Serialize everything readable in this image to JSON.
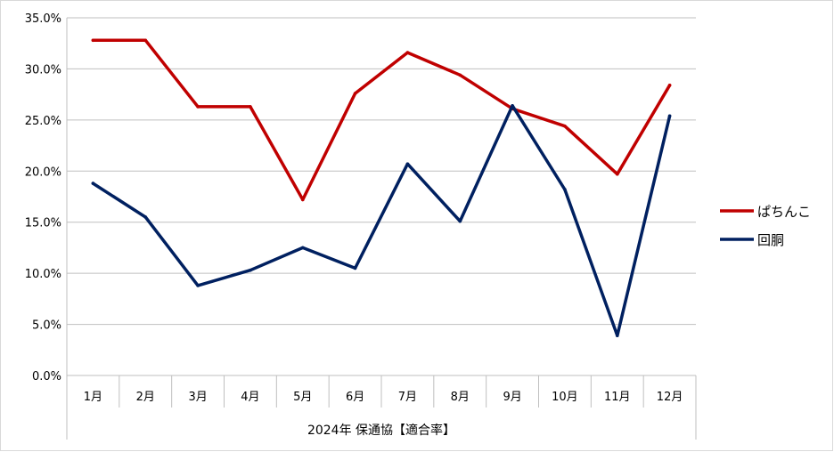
{
  "chart_data": {
    "type": "line",
    "categories": [
      "1月",
      "2月",
      "3月",
      "4月",
      "5月",
      "6月",
      "7月",
      "8月",
      "9月",
      "10月",
      "11月",
      "12月"
    ],
    "series": [
      {
        "name": "ぱちんこ",
        "color": "#c00000",
        "values": [
          32.8,
          32.8,
          26.3,
          26.3,
          17.2,
          27.6,
          31.6,
          29.4,
          26.1,
          24.4,
          19.7,
          28.4
        ]
      },
      {
        "name": "回胴",
        "color": "#002060",
        "values": [
          18.8,
          15.5,
          8.8,
          10.3,
          12.5,
          10.5,
          20.7,
          15.1,
          26.4,
          18.2,
          3.9,
          25.4
        ]
      }
    ],
    "xlabel": "2024年 保通協【適合率】",
    "ylabel": "",
    "ylim": [
      0,
      35
    ],
    "yticks": [
      "0.0%",
      "5.0%",
      "10.0%",
      "15.0%",
      "20.0%",
      "25.0%",
      "30.0%",
      "35.0%"
    ],
    "grid": true,
    "legend_position": "right"
  }
}
